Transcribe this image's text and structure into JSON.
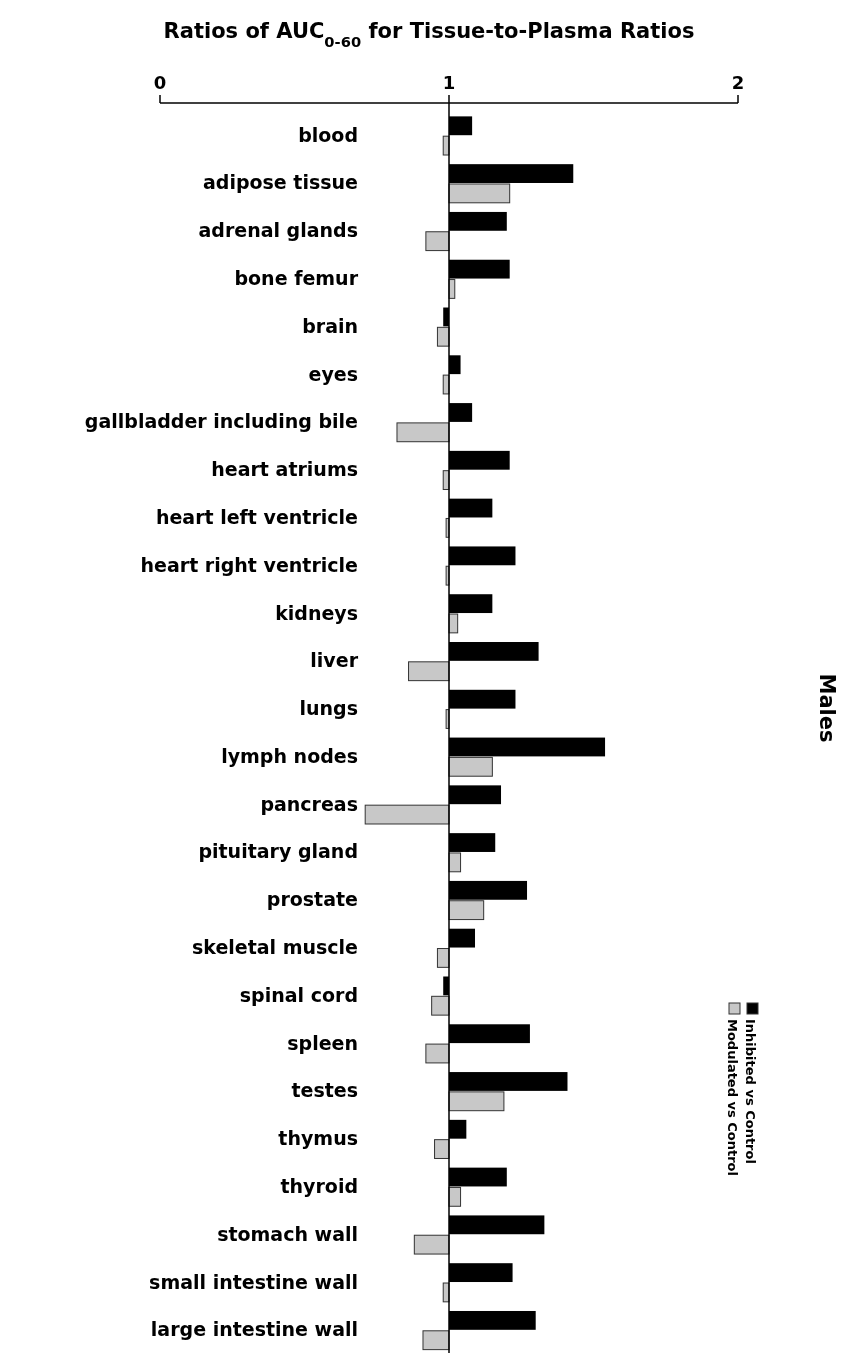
{
  "chart_data": {
    "type": "bar",
    "orientation": "horizontal",
    "title": "Ratios of AUC$_{0-60}$ for Tissue-to-Plasma Ratios",
    "ylabel": "Males",
    "categories": [
      "blood",
      "adipose tissue",
      "adrenal glands",
      "bone femur",
      "brain",
      "eyes",
      "gallbladder including bile",
      "heart atriums",
      "heart left ventricle",
      "heart right ventricle",
      "kidneys",
      "liver",
      "lungs",
      "lymph nodes",
      "pancreas",
      "pituitary gland",
      "prostate",
      "skeletal muscle",
      "spinal cord",
      "spleen",
      "testes",
      "thymus",
      "thyroid",
      "stomach wall",
      "small intestine wall",
      "large intestine wall"
    ],
    "series": [
      {
        "name": "Inhibited vs Control",
        "color": "#000000",
        "base": [
          1,
          1,
          1,
          1,
          1,
          1,
          1,
          1,
          1,
          1,
          1,
          1,
          1,
          1,
          1,
          1,
          1,
          1,
          1,
          1,
          1,
          1,
          1,
          1,
          1,
          1
        ],
        "values": [
          0.08,
          0.43,
          0.2,
          0.21,
          -0.02,
          0.04,
          0.08,
          0.21,
          0.15,
          0.23,
          0.15,
          0.31,
          0.23,
          0.54,
          0.18,
          0.16,
          0.27,
          0.09,
          -0.02,
          0.28,
          0.41,
          0.06,
          0.2,
          0.33,
          0.22,
          0.3
        ]
      },
      {
        "name": "Modulated vs Control",
        "color": "#c8c8c8",
        "base": [
          1,
          1,
          1,
          1,
          1,
          1,
          1,
          1,
          1,
          1,
          1,
          1,
          1,
          1,
          1,
          1,
          1,
          1,
          1,
          1,
          1,
          1,
          1,
          1,
          1,
          1
        ],
        "values": [
          -0.02,
          0.21,
          -0.08,
          0.02,
          -0.04,
          -0.02,
          -0.18,
          -0.02,
          -0.01,
          -0.01,
          0.03,
          -0.14,
          -0.01,
          0.15,
          -0.29,
          0.04,
          0.12,
          -0.04,
          -0.06,
          -0.08,
          0.19,
          -0.05,
          0.04,
          -0.12,
          -0.02,
          -0.09
        ]
      }
    ],
    "ref_lines": [
      {
        "axis": "x",
        "value": 1,
        "color": "#000000"
      }
    ],
    "xlim": [
      0,
      2
    ],
    "xticks": [
      0,
      1,
      2
    ],
    "grid": false,
    "legend": "right"
  }
}
